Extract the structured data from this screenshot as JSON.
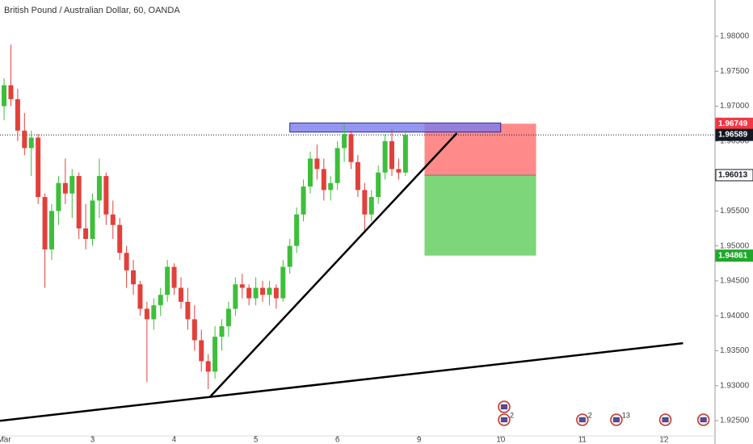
{
  "chart_data": {
    "type": "candlestick",
    "title": "British Pound / Australian Dollar, 60, OANDA",
    "up_color": "#3dbf3a",
    "down_color": "#e2403a",
    "x": [
      0,
      2,
      4,
      6,
      8,
      10,
      12,
      14,
      16,
      18,
      20,
      22,
      24,
      26,
      28,
      30,
      32,
      34,
      36,
      38,
      40,
      42,
      44,
      46,
      48,
      50,
      52,
      54,
      56,
      58,
      60,
      62,
      64,
      66,
      68,
      70,
      72,
      74,
      76,
      78,
      80,
      82,
      84,
      86,
      88,
      90,
      92,
      94,
      96,
      98,
      100,
      102,
      104,
      106,
      108,
      110,
      112,
      114,
      116,
      118
    ],
    "open": [
      1.97,
      1.973,
      1.971,
      1.9665,
      1.964,
      1.9655,
      1.957,
      1.9495,
      1.955,
      1.959,
      1.9575,
      1.96,
      1.9525,
      1.951,
      1.9565,
      1.96,
      1.9545,
      1.953,
      1.949,
      1.9465,
      1.9445,
      1.941,
      1.9395,
      1.9415,
      1.943,
      1.947,
      1.944,
      1.942,
      1.9395,
      1.9365,
      1.9335,
      1.932,
      1.937,
      1.9385,
      1.941,
      1.9445,
      1.944,
      1.9425,
      1.944,
      1.943,
      1.944,
      1.9425,
      1.947,
      1.95,
      1.9545,
      1.9585,
      1.9625,
      1.961,
      1.958,
      1.959,
      1.964,
      1.966,
      1.962,
      1.958,
      1.9545,
      1.957,
      1.9605,
      1.965,
      1.961,
      1.9605
    ],
    "high": [
      1.974,
      1.9788,
      1.9725,
      1.969,
      1.9665,
      1.966,
      1.9575,
      1.956,
      1.96,
      1.9625,
      1.961,
      1.9605,
      1.956,
      1.9575,
      1.9625,
      1.9605,
      1.9565,
      1.954,
      1.95,
      1.948,
      1.945,
      1.942,
      1.9425,
      1.944,
      1.948,
      1.9475,
      1.9455,
      1.944,
      1.9415,
      1.938,
      1.9345,
      1.9385,
      1.9395,
      1.942,
      1.9455,
      1.946,
      1.9445,
      1.9455,
      1.945,
      1.945,
      1.9445,
      1.948,
      1.951,
      1.9555,
      1.9595,
      1.9635,
      1.9645,
      1.9625,
      1.96,
      1.965,
      1.9674,
      1.9665,
      1.963,
      1.959,
      1.958,
      1.9615,
      1.966,
      1.9667,
      1.9625,
      1.9665
    ],
    "low": [
      1.968,
      1.97,
      1.965,
      1.963,
      1.96,
      1.956,
      1.944,
      1.948,
      1.953,
      1.956,
      1.954,
      1.951,
      1.9495,
      1.95,
      1.954,
      1.953,
      1.951,
      1.948,
      1.944,
      1.943,
      1.94,
      1.9305,
      1.938,
      1.94,
      1.942,
      1.943,
      1.941,
      1.938,
      1.935,
      1.932,
      1.9295,
      1.931,
      1.935,
      1.937,
      1.94,
      1.9425,
      1.9415,
      1.9415,
      1.942,
      1.9415,
      1.941,
      1.942,
      1.946,
      1.949,
      1.9535,
      1.9575,
      1.9595,
      1.9565,
      1.9565,
      1.958,
      1.962,
      1.961,
      1.957,
      1.952,
      1.9535,
      1.956,
      1.9595,
      1.96,
      1.9595,
      1.96
    ],
    "close": [
      1.973,
      1.971,
      1.9665,
      1.964,
      1.9655,
      1.957,
      1.9495,
      1.955,
      1.959,
      1.9575,
      1.96,
      1.9525,
      1.951,
      1.9565,
      1.96,
      1.9545,
      1.953,
      1.949,
      1.9465,
      1.9445,
      1.941,
      1.9395,
      1.9415,
      1.943,
      1.947,
      1.944,
      1.942,
      1.9395,
      1.9365,
      1.9335,
      1.932,
      1.937,
      1.9385,
      1.941,
      1.9445,
      1.944,
      1.9425,
      1.944,
      1.943,
      1.944,
      1.9425,
      1.947,
      1.95,
      1.9545,
      1.9585,
      1.9625,
      1.961,
      1.958,
      1.959,
      1.964,
      1.966,
      1.962,
      1.958,
      1.9545,
      1.957,
      1.9605,
      1.965,
      1.961,
      1.9605,
      1.9659
    ],
    "xlim": [
      -1.2,
      209
    ],
    "xticks": [
      {
        "value": 0,
        "label": "Mar"
      },
      {
        "value": 26,
        "label": "3"
      },
      {
        "value": 50,
        "label": "4"
      },
      {
        "value": 74,
        "label": "5"
      },
      {
        "value": 98,
        "label": "6"
      },
      {
        "value": 122,
        "label": "9"
      },
      {
        "value": 146,
        "label": "10"
      },
      {
        "value": 170,
        "label": "11"
      },
      {
        "value": 194,
        "label": "12"
      }
    ],
    "ylim": [
      1.9228,
      1.9852
    ],
    "yticks": [
      {
        "value": 1.925,
        "label": "1.92500"
      },
      {
        "value": 1.93,
        "label": "1.93000"
      },
      {
        "value": 1.935,
        "label": "1.93500"
      },
      {
        "value": 1.94,
        "label": "1.94000"
      },
      {
        "value": 1.945,
        "label": "1.94500"
      },
      {
        "value": 1.95,
        "label": "1.95000"
      },
      {
        "value": 1.955,
        "label": "1.95500"
      },
      {
        "value": 1.96,
        "label": "1.96000"
      },
      {
        "value": 1.965,
        "label": "1.96500"
      },
      {
        "value": 1.97,
        "label": "1.97000"
      },
      {
        "value": 1.975,
        "label": "1.97500"
      },
      {
        "value": 1.98,
        "label": "1.98000"
      }
    ],
    "last_price": 1.96589,
    "price_labels": [
      {
        "value": 1.96749,
        "color": "#f23645"
      },
      {
        "value": 1.96589,
        "color": "#131722"
      },
      {
        "value": 1.96013,
        "color": "#ffffff"
      },
      {
        "value": 1.94861,
        "color": "#1fa82a"
      }
    ],
    "rectangle": {
      "x": [
        84,
        146
      ],
      "y": [
        1.9676,
        1.9663
      ],
      "color": "#7b7bf0"
    },
    "position": {
      "x": [
        123.6,
        156.4
      ],
      "stop": 1.96749,
      "entry": 1.96013,
      "target": 1.94861,
      "stop_color": "#ff8a8a",
      "target_color": "#7ed67a"
    },
    "trendlines": [
      {
        "x": [
          60.4,
          133.1
        ],
        "y": [
          1.92832,
          1.96613
        ]
      },
      {
        "x": [
          -1.2,
          199.6
        ],
        "y": [
          1.92497,
          1.93607
        ]
      }
    ],
    "events": [
      {
        "x": 147
      },
      {
        "x": 147,
        "count": 2
      },
      {
        "x": 170,
        "count": 2
      },
      {
        "x": 180,
        "count": 13
      },
      {
        "x": 194.4
      },
      {
        "x": 205.6
      }
    ]
  }
}
